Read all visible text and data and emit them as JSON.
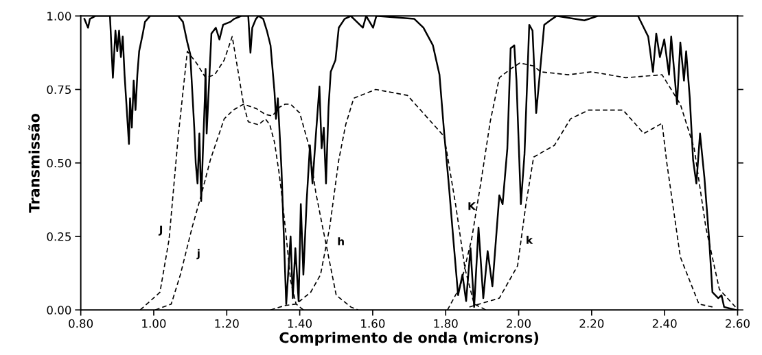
{
  "chart_data": {
    "type": "line",
    "xlabel": "Comprimento de onda (microns)",
    "ylabel": "Transmissão",
    "xlim": [
      0.8,
      2.6
    ],
    "ylim": [
      0,
      1
    ],
    "xticks": [
      {
        "value": 0.8,
        "label": "0.80"
      },
      {
        "value": 1.0,
        "label": "1.00"
      },
      {
        "value": 1.2,
        "label": "1.20"
      },
      {
        "value": 1.4,
        "label": "1.40"
      },
      {
        "value": 1.6,
        "label": "1.60"
      },
      {
        "value": 1.8,
        "label": "1.80"
      },
      {
        "value": 2.0,
        "label": "2.00"
      },
      {
        "value": 2.2,
        "label": "2.20"
      },
      {
        "value": 2.4,
        "label": "2.40"
      },
      {
        "value": 2.6,
        "label": "2.60"
      }
    ],
    "yticks": [
      {
        "value": 0,
        "label": "0.00"
      },
      {
        "value": 0.25,
        "label": "0.25"
      },
      {
        "value": 0.5,
        "label": "0.50"
      },
      {
        "value": 0.75,
        "label": "0.75"
      },
      {
        "value": 1.0,
        "label": "1.00"
      }
    ],
    "grid": false,
    "marker": "none",
    "series": [
      {
        "color": "#000000",
        "line_style": "solid",
        "x": [
          0.81,
          0.82,
          0.825,
          0.84,
          0.88,
          0.888,
          0.895,
          0.9,
          0.905,
          0.91,
          0.915,
          0.92,
          0.932,
          0.935,
          0.94,
          0.945,
          0.95,
          0.955,
          0.96,
          0.97,
          0.976,
          0.99,
          1.067,
          1.08,
          1.092,
          1.1,
          1.111,
          1.115,
          1.12,
          1.125,
          1.13,
          1.135,
          1.14,
          1.142,
          1.145,
          1.158,
          1.17,
          1.18,
          1.19,
          1.21,
          1.22,
          1.24,
          1.259,
          1.265,
          1.27,
          1.28,
          1.287,
          1.3,
          1.31,
          1.32,
          1.331,
          1.335,
          1.34,
          1.35,
          1.363,
          1.375,
          1.381,
          1.388,
          1.397,
          1.403,
          1.41,
          1.419,
          1.428,
          1.435,
          1.444,
          1.454,
          1.46,
          1.466,
          1.472,
          1.479,
          1.485,
          1.498,
          1.507,
          1.523,
          1.54,
          1.573,
          1.582,
          1.601,
          1.61,
          1.714,
          1.739,
          1.765,
          1.783,
          1.796,
          1.809,
          1.821,
          1.834,
          1.846,
          1.856,
          1.868,
          1.878,
          1.89,
          1.903,
          1.915,
          1.928,
          1.947,
          1.956,
          1.969,
          1.978,
          1.988,
          1.994,
          2.006,
          2.016,
          2.029,
          2.038,
          2.048,
          2.057,
          2.07,
          2.092,
          2.104,
          2.18,
          2.217,
          2.327,
          2.343,
          2.355,
          2.368,
          2.377,
          2.387,
          2.399,
          2.412,
          2.418,
          2.434,
          2.443,
          2.453,
          2.459,
          2.469,
          2.478,
          2.487,
          2.497,
          2.509,
          2.522,
          2.531,
          2.547,
          2.556,
          2.563,
          2.594
        ],
        "values": [
          0.99,
          0.96,
          0.99,
          1.0,
          1.0,
          0.79,
          0.95,
          0.88,
          0.95,
          0.86,
          0.93,
          0.8,
          0.565,
          0.72,
          0.62,
          0.78,
          0.68,
          0.8,
          0.88,
          0.94,
          0.98,
          1.0,
          1.0,
          0.98,
          0.91,
          0.87,
          0.62,
          0.5,
          0.43,
          0.6,
          0.37,
          0.55,
          0.72,
          0.82,
          0.6,
          0.94,
          0.96,
          0.92,
          0.97,
          0.98,
          0.99,
          1.0,
          1.0,
          0.875,
          0.96,
          0.99,
          1.0,
          0.99,
          0.95,
          0.9,
          0.74,
          0.65,
          0.72,
          0.48,
          0.02,
          0.25,
          0.04,
          0.21,
          0.03,
          0.36,
          0.12,
          0.37,
          0.56,
          0.43,
          0.59,
          0.76,
          0.55,
          0.62,
          0.43,
          0.69,
          0.81,
          0.85,
          0.96,
          0.99,
          1.0,
          0.96,
          1.0,
          0.96,
          1.0,
          0.99,
          0.96,
          0.9,
          0.8,
          0.6,
          0.42,
          0.24,
          0.05,
          0.12,
          0.03,
          0.21,
          0.01,
          0.28,
          0.04,
          0.2,
          0.08,
          0.39,
          0.36,
          0.55,
          0.89,
          0.9,
          0.78,
          0.36,
          0.53,
          0.97,
          0.95,
          0.67,
          0.79,
          0.97,
          0.99,
          1.0,
          0.985,
          1.0,
          1.0,
          0.96,
          0.93,
          0.81,
          0.94,
          0.86,
          0.92,
          0.8,
          0.93,
          0.7,
          0.91,
          0.78,
          0.88,
          0.72,
          0.51,
          0.43,
          0.6,
          0.45,
          0.24,
          0.06,
          0.04,
          0.05,
          0.01,
          0.0
        ]
      },
      {
        "name": "J",
        "color": "#000000",
        "line_style": "dashed",
        "x": [
          0.963,
          1.017,
          1.042,
          1.067,
          1.092,
          1.117,
          1.142,
          1.167,
          1.193,
          1.215,
          1.23,
          1.246,
          1.259,
          1.287,
          1.306,
          1.318,
          1.331,
          1.343,
          1.35,
          1.363,
          1.375,
          1.39,
          1.41
        ],
        "values": [
          0.0,
          0.06,
          0.24,
          0.59,
          0.88,
          0.84,
          0.79,
          0.8,
          0.85,
          0.93,
          0.82,
          0.7,
          0.64,
          0.63,
          0.65,
          0.63,
          0.57,
          0.47,
          0.4,
          0.25,
          0.1,
          0.02,
          0.0
        ]
      },
      {
        "name": "j",
        "color": "#000000",
        "line_style": "dashed",
        "x": [
          1.004,
          1.048,
          1.073,
          1.105,
          1.13,
          1.155,
          1.193,
          1.218,
          1.246,
          1.281,
          1.306,
          1.325,
          1.345,
          1.36,
          1.375,
          1.4,
          1.425,
          1.444,
          1.463,
          1.476,
          1.5,
          1.54,
          1.56
        ],
        "values": [
          0.0,
          0.02,
          0.12,
          0.28,
          0.39,
          0.51,
          0.65,
          0.68,
          0.7,
          0.685,
          0.665,
          0.66,
          0.69,
          0.7,
          0.7,
          0.67,
          0.56,
          0.4,
          0.28,
          0.2,
          0.05,
          0.01,
          0.0
        ]
      },
      {
        "name": "h",
        "color": "#000000",
        "line_style": "dashed",
        "x": [
          1.32,
          1.36,
          1.39,
          1.43,
          1.457,
          1.482,
          1.507,
          1.526,
          1.548,
          1.608,
          1.695,
          1.796,
          1.827,
          1.853,
          1.878,
          1.91
        ],
        "values": [
          0.0,
          0.015,
          0.02,
          0.06,
          0.12,
          0.28,
          0.51,
          0.63,
          0.72,
          0.75,
          0.73,
          0.59,
          0.36,
          0.14,
          0.02,
          0.0
        ]
      },
      {
        "name": "K",
        "color": "#000000",
        "line_style": "dashed",
        "x": [
          1.805,
          1.84,
          1.871,
          1.896,
          1.922,
          1.947,
          1.978,
          2.003,
          2.041,
          2.06,
          2.136,
          2.2,
          2.293,
          2.393,
          2.443,
          2.481,
          2.513,
          2.55,
          2.594
        ],
        "values": [
          0.0,
          0.08,
          0.24,
          0.43,
          0.64,
          0.79,
          0.82,
          0.84,
          0.83,
          0.81,
          0.8,
          0.81,
          0.79,
          0.8,
          0.7,
          0.55,
          0.28,
          0.07,
          0.01
        ]
      },
      {
        "name": "k",
        "color": "#000000",
        "line_style": "dashed",
        "x": [
          1.865,
          1.947,
          1.997,
          2.02,
          2.041,
          2.098,
          2.142,
          2.192,
          2.286,
          2.343,
          2.393,
          2.406,
          2.443,
          2.494,
          2.531
        ],
        "values": [
          0.01,
          0.04,
          0.15,
          0.36,
          0.52,
          0.56,
          0.65,
          0.68,
          0.68,
          0.6,
          0.635,
          0.5,
          0.18,
          0.02,
          0.01
        ]
      }
    ]
  }
}
